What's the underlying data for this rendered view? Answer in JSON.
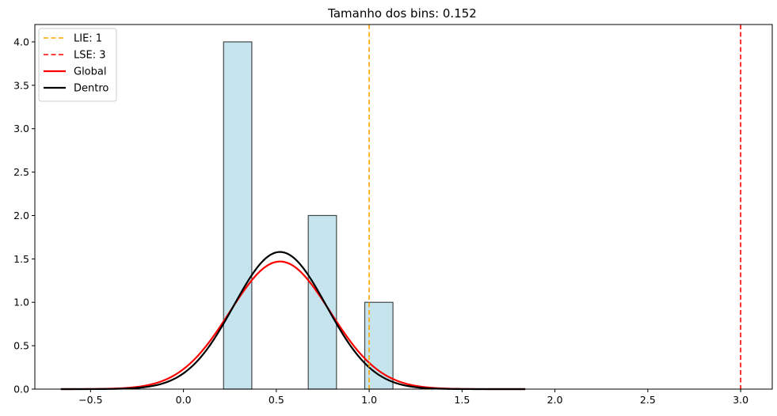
{
  "chart_data": {
    "type": "bar",
    "title": "Tamanho dos bins: 0.152",
    "xlabel": "",
    "ylabel": "",
    "xlim": [
      -0.8,
      3.17
    ],
    "ylim": [
      0,
      4.2
    ],
    "x_ticks": [
      -0.5,
      0.0,
      0.5,
      1.0,
      1.5,
      2.0,
      2.5,
      3.0
    ],
    "x_tick_labels": [
      "−0.5",
      "0.0",
      "0.5",
      "1.0",
      "1.5",
      "2.0",
      "2.5",
      "3.0"
    ],
    "y_ticks": [
      0.0,
      0.5,
      1.0,
      1.5,
      2.0,
      2.5,
      3.0,
      3.5,
      4.0
    ],
    "y_tick_labels": [
      "0.0",
      "0.5",
      "1.0",
      "1.5",
      "2.0",
      "2.5",
      "3.0",
      "3.5",
      "4.0"
    ],
    "histogram": {
      "bins": [
        {
          "left": 0.216,
          "right": 0.368,
          "count": 4
        },
        {
          "left": 0.368,
          "right": 0.52,
          "count": 0
        },
        {
          "left": 0.52,
          "right": 0.672,
          "count": 0
        },
        {
          "left": 0.672,
          "right": 0.824,
          "count": 2
        },
        {
          "left": 0.824,
          "right": 0.976,
          "count": 0
        },
        {
          "left": 0.976,
          "right": 1.128,
          "count": 1
        }
      ],
      "fill": "#add8e6",
      "edge": "#000000"
    },
    "vlines": [
      {
        "label": "LIE: 1",
        "x": 1,
        "color": "#ffa500",
        "style": "dashed"
      },
      {
        "label": "LSE: 3",
        "x": 3,
        "color": "#ff0000",
        "style": "dashed"
      }
    ],
    "curves": [
      {
        "label": "Global",
        "color": "#ff0000",
        "mean": 0.52,
        "sd": 0.27,
        "peak": 1.47,
        "x_range": [
          -0.66,
          1.84
        ]
      },
      {
        "label": "Dentro",
        "color": "#000000",
        "mean": 0.52,
        "sd": 0.25,
        "peak": 1.58,
        "x_range": [
          -0.66,
          1.84
        ]
      }
    ],
    "legend": {
      "position": "top-left",
      "entries": [
        {
          "label": "LIE: 1",
          "color": "#ffa500",
          "style": "dashed"
        },
        {
          "label": "LSE: 3",
          "color": "#ff0000",
          "style": "dashed"
        },
        {
          "label": "Global",
          "color": "#ff0000",
          "style": "solid"
        },
        {
          "label": "Dentro",
          "color": "#000000",
          "style": "solid"
        }
      ]
    },
    "grid": false
  }
}
